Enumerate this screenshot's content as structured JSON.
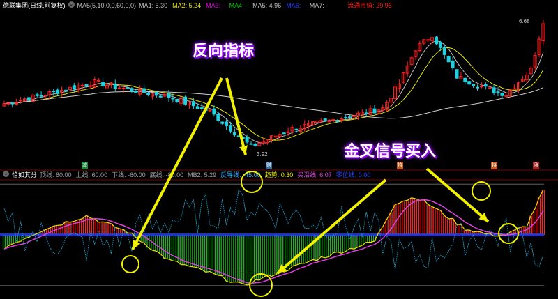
{
  "top_header": {
    "title": "德联集团(日线,前复权)",
    "ma_params": "MA5(5,10,0,0,60,0,0)",
    "ma": [
      {
        "label": "MA1: 5.30",
        "color": "#c0c0c0"
      },
      {
        "label": "MA2: 5.24",
        "color": "#e8e800"
      },
      {
        "label": "MA3: -",
        "color": "#e000e0"
      },
      {
        "label": "MA4: -",
        "color": "#00d000"
      },
      {
        "label": "MA5: 4.96",
        "color": "#c0c0c0"
      },
      {
        "label": "MA6: -",
        "color": "#2040ff"
      },
      {
        "label": "MA7: -",
        "color": "#c0c0c0"
      }
    ],
    "market_cap": "流通市值: 29.96"
  },
  "price_labels": {
    "high": "6.68",
    "low": "3.92"
  },
  "annotations": {
    "reverse": "反向指标",
    "golden_cross": "金叉信号买入"
  },
  "markers": [
    {
      "text": "减",
      "color": "#1a8a3a"
    },
    {
      "text": "财",
      "color": "#3a6a9a"
    },
    {
      "text": "特",
      "color": "#c05a20"
    },
    {
      "text": "特",
      "color": "#c05a20"
    },
    {
      "text": "涨",
      "color": "#a02020"
    }
  ],
  "indicator_header": {
    "name": "恰如其分",
    "items": [
      {
        "label": "顶线: 80.00",
        "color": "#a0a0a0"
      },
      {
        "label": "上线: 60.00",
        "color": "#a0a0a0"
      },
      {
        "label": "下线: -60.00",
        "color": "#a0a0a0"
      },
      {
        "label": "底线: -80.00",
        "color": "#a0a0a0"
      },
      {
        "label": "MB2: 5.29",
        "color": "#a0a0a0"
      },
      {
        "label": "反导线: -45.00",
        "color": "#20b0ff"
      },
      {
        "label": "趋势: 0.30",
        "color": "#e8e800"
      },
      {
        "label": "买沿线: 6.07",
        "color": "#e040e0"
      },
      {
        "label": "零位线: 0.00",
        "color": "#2040ff"
      }
    ]
  },
  "colors": {
    "up": "#ff2020",
    "down": "#20d0e0",
    "hist_up": "#ff2020",
    "hist_down": "#20b020",
    "zero_bar": "#2040ff",
    "arrow": "#f0f000"
  },
  "price_keypoints": [
    [
      0,
      4.9
    ],
    [
      10,
      5.1
    ],
    [
      22,
      5.36
    ],
    [
      30,
      5.21
    ],
    [
      40,
      5.05
    ],
    [
      50,
      4.73
    ],
    [
      60,
      3.98
    ],
    [
      70,
      4.36
    ],
    [
      80,
      4.55
    ],
    [
      92,
      4.8
    ],
    [
      96,
      5.33
    ],
    [
      100,
      6.08
    ],
    [
      104,
      6.38
    ],
    [
      110,
      5.48
    ],
    [
      118,
      5.2
    ],
    [
      122,
      5.1
    ],
    [
      128,
      5.63
    ],
    [
      131,
      6.68
    ]
  ],
  "indicator_keypoints": [
    [
      0,
      -20
    ],
    [
      10,
      10
    ],
    [
      20,
      30
    ],
    [
      30,
      5
    ],
    [
      40,
      -40
    ],
    [
      50,
      -60
    ],
    [
      58,
      -80
    ],
    [
      62,
      -70
    ],
    [
      75,
      -40
    ],
    [
      90,
      -10
    ],
    [
      95,
      50
    ],
    [
      100,
      60
    ],
    [
      104,
      45
    ],
    [
      112,
      10
    ],
    [
      118,
      0
    ],
    [
      122,
      0
    ],
    [
      127,
      15
    ],
    [
      131,
      70
    ]
  ]
}
